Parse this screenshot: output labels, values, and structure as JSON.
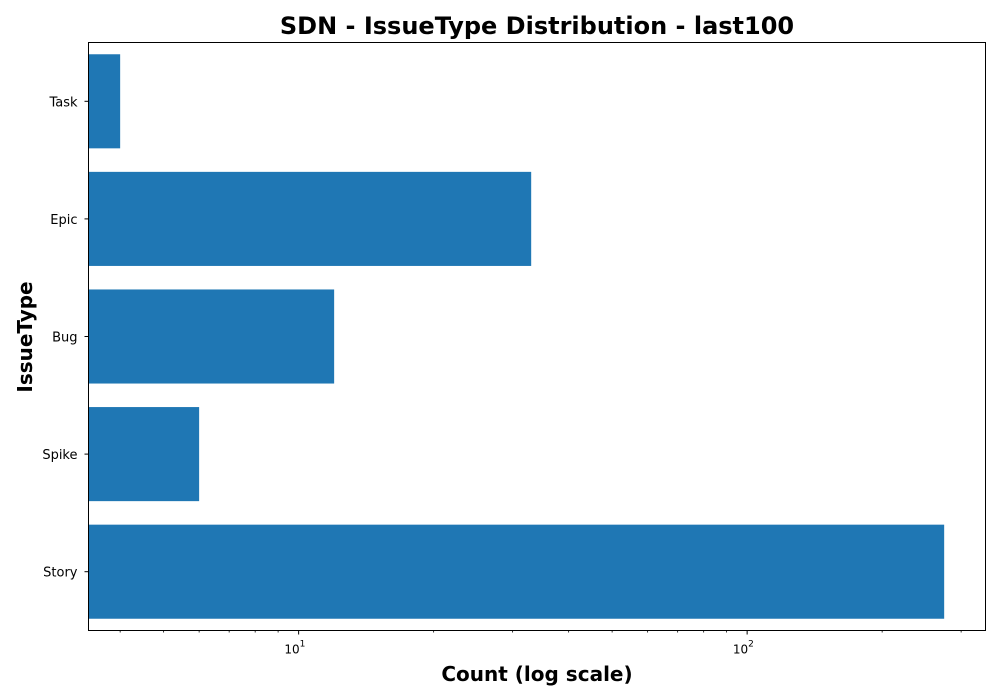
{
  "chart_data": {
    "type": "bar",
    "orientation": "horizontal",
    "title": "SDN - IssueType Distribution - last100",
    "xlabel": "Count (log scale)",
    "ylabel": "IssueType",
    "xscale": "log",
    "xlim": [
      3.4,
      340
    ],
    "categories": [
      "Story",
      "Spike",
      "Bug",
      "Epic",
      "Task"
    ],
    "values": [
      275,
      6,
      12,
      33,
      4
    ],
    "bar_color": "#1f77b4",
    "x_major_ticks": [
      {
        "value": 10,
        "base": "10",
        "exponent": "1"
      },
      {
        "value": 100,
        "base": "10",
        "exponent": "2"
      }
    ],
    "grid": false,
    "legend": "none"
  }
}
